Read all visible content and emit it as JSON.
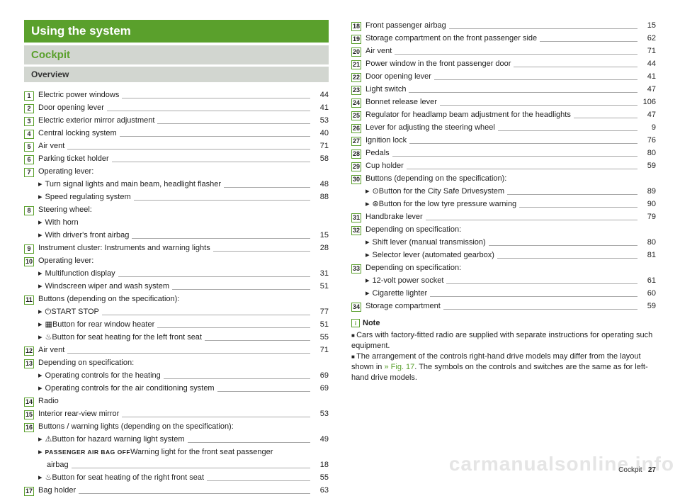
{
  "headings": {
    "using": "Using the system",
    "cockpit": "Cockpit",
    "overview": "Overview"
  },
  "left": [
    {
      "n": "1",
      "text": "Electric power windows",
      "page": "44"
    },
    {
      "n": "2",
      "text": "Door opening lever",
      "page": "41"
    },
    {
      "n": "3",
      "text": "Electric exterior mirror adjustment",
      "page": "53"
    },
    {
      "n": "4",
      "text": "Central locking system",
      "page": "40"
    },
    {
      "n": "5",
      "text": "Air vent",
      "page": "71"
    },
    {
      "n": "6",
      "text": "Parking ticket holder",
      "page": "58"
    },
    {
      "n": "7",
      "text": "Operating lever:",
      "subs": [
        {
          "text": "Turn signal lights and main beam, headlight flasher",
          "page": "48"
        },
        {
          "text": "Speed regulating system",
          "page": "88"
        }
      ]
    },
    {
      "n": "8",
      "text": "Steering wheel:",
      "subs": [
        {
          "text": "With horn",
          "nopage": true
        },
        {
          "text": "With driver's front airbag",
          "page": "15"
        }
      ]
    },
    {
      "n": "9",
      "text": "Instrument cluster: Instruments and warning lights",
      "page": "28"
    },
    {
      "n": "10",
      "text": "Operating lever:",
      "subs": [
        {
          "text": "Multifunction display",
          "page": "31"
        },
        {
          "text": "Windscreen wiper and wash system",
          "page": "51"
        }
      ]
    },
    {
      "n": "11",
      "text": "Buttons (depending on the specification):",
      "subs": [
        {
          "icon": "⏻",
          "text": "START STOP",
          "page": "77"
        },
        {
          "icon": "▦",
          "text": "Button for rear window heater",
          "page": "51"
        },
        {
          "icon": "♨",
          "text": "Button for seat heating for the left front seat",
          "page": "55"
        }
      ]
    },
    {
      "n": "12",
      "text": "Air vent",
      "page": "71"
    },
    {
      "n": "13",
      "text": "Depending on specification:",
      "subs": [
        {
          "text": "Operating controls for the heating",
          "page": "69"
        },
        {
          "text": "Operating controls for the air conditioning system",
          "page": "69"
        }
      ]
    },
    {
      "n": "14",
      "text": "Radio",
      "nopage": true
    },
    {
      "n": "15",
      "text": "Interior rear-view mirror",
      "page": "53"
    },
    {
      "n": "16",
      "text": "Buttons / warning lights (depending on the specification):",
      "subs": [
        {
          "icon": "⚠",
          "text": "Button for hazard warning light system",
          "page": "49"
        },
        {
          "passenger": true,
          "text": "Warning light for the front seat passenger airbag",
          "page": "18",
          "wrap": true
        },
        {
          "icon": "♨",
          "text": "Button for seat heating of the right front seat",
          "page": "55"
        }
      ]
    },
    {
      "n": "17",
      "text": "Bag holder",
      "page": "63"
    }
  ],
  "right": [
    {
      "n": "18",
      "text": "Front passenger airbag",
      "page": "15"
    },
    {
      "n": "19",
      "text": "Storage compartment on the front passenger side",
      "page": "62"
    },
    {
      "n": "20",
      "text": "Air vent",
      "page": "71"
    },
    {
      "n": "21",
      "text": "Power window in the front passenger door",
      "page": "44"
    },
    {
      "n": "22",
      "text": "Door opening lever",
      "page": "41"
    },
    {
      "n": "23",
      "text": "Light switch",
      "page": "47"
    },
    {
      "n": "24",
      "text": "Bonnet release lever",
      "page": "106"
    },
    {
      "n": "25",
      "text": "Regulator for headlamp beam adjustment for the headlights",
      "page": "47"
    },
    {
      "n": "26",
      "text": "Lever for adjusting the steering wheel",
      "page": "9"
    },
    {
      "n": "27",
      "text": "Ignition lock",
      "page": "76"
    },
    {
      "n": "28",
      "text": "Pedals",
      "page": "80"
    },
    {
      "n": "29",
      "text": "Cup holder",
      "page": "59"
    },
    {
      "n": "30",
      "text": "Buttons (depending on the specification):",
      "subs": [
        {
          "icon": "⊙",
          "text": "Button for the City Safe Drivesystem",
          "page": "89"
        },
        {
          "icon": "⊛",
          "text": "Button for the low tyre pressure warning",
          "page": "90"
        }
      ]
    },
    {
      "n": "31",
      "text": "Handbrake lever",
      "page": "79"
    },
    {
      "n": "32",
      "text": "Depending on specification:",
      "subs": [
        {
          "text": "Shift lever (manual transmission)",
          "page": "80"
        },
        {
          "text": "Selector lever (automated gearbox)",
          "page": "81"
        }
      ]
    },
    {
      "n": "33",
      "text": "Depending on specification:",
      "subs": [
        {
          "text": "12-volt power socket",
          "page": "61"
        },
        {
          "text": "Cigarette lighter",
          "page": "60"
        }
      ]
    },
    {
      "n": "34",
      "text": "Storage compartment",
      "page": "59"
    }
  ],
  "note": {
    "heading": "Note",
    "lines": [
      "Cars with factory-fitted radio are supplied with separate instructions for operating such equipment.",
      "The arrangement of the controls right-hand drive models may differ from the layout shown in |» Fig. 17|. The symbols on the controls and switches are the same as for left-hand drive models."
    ]
  },
  "footer": {
    "label": "Cockpit",
    "page": "27"
  },
  "watermark": "carmanualsonline.info"
}
